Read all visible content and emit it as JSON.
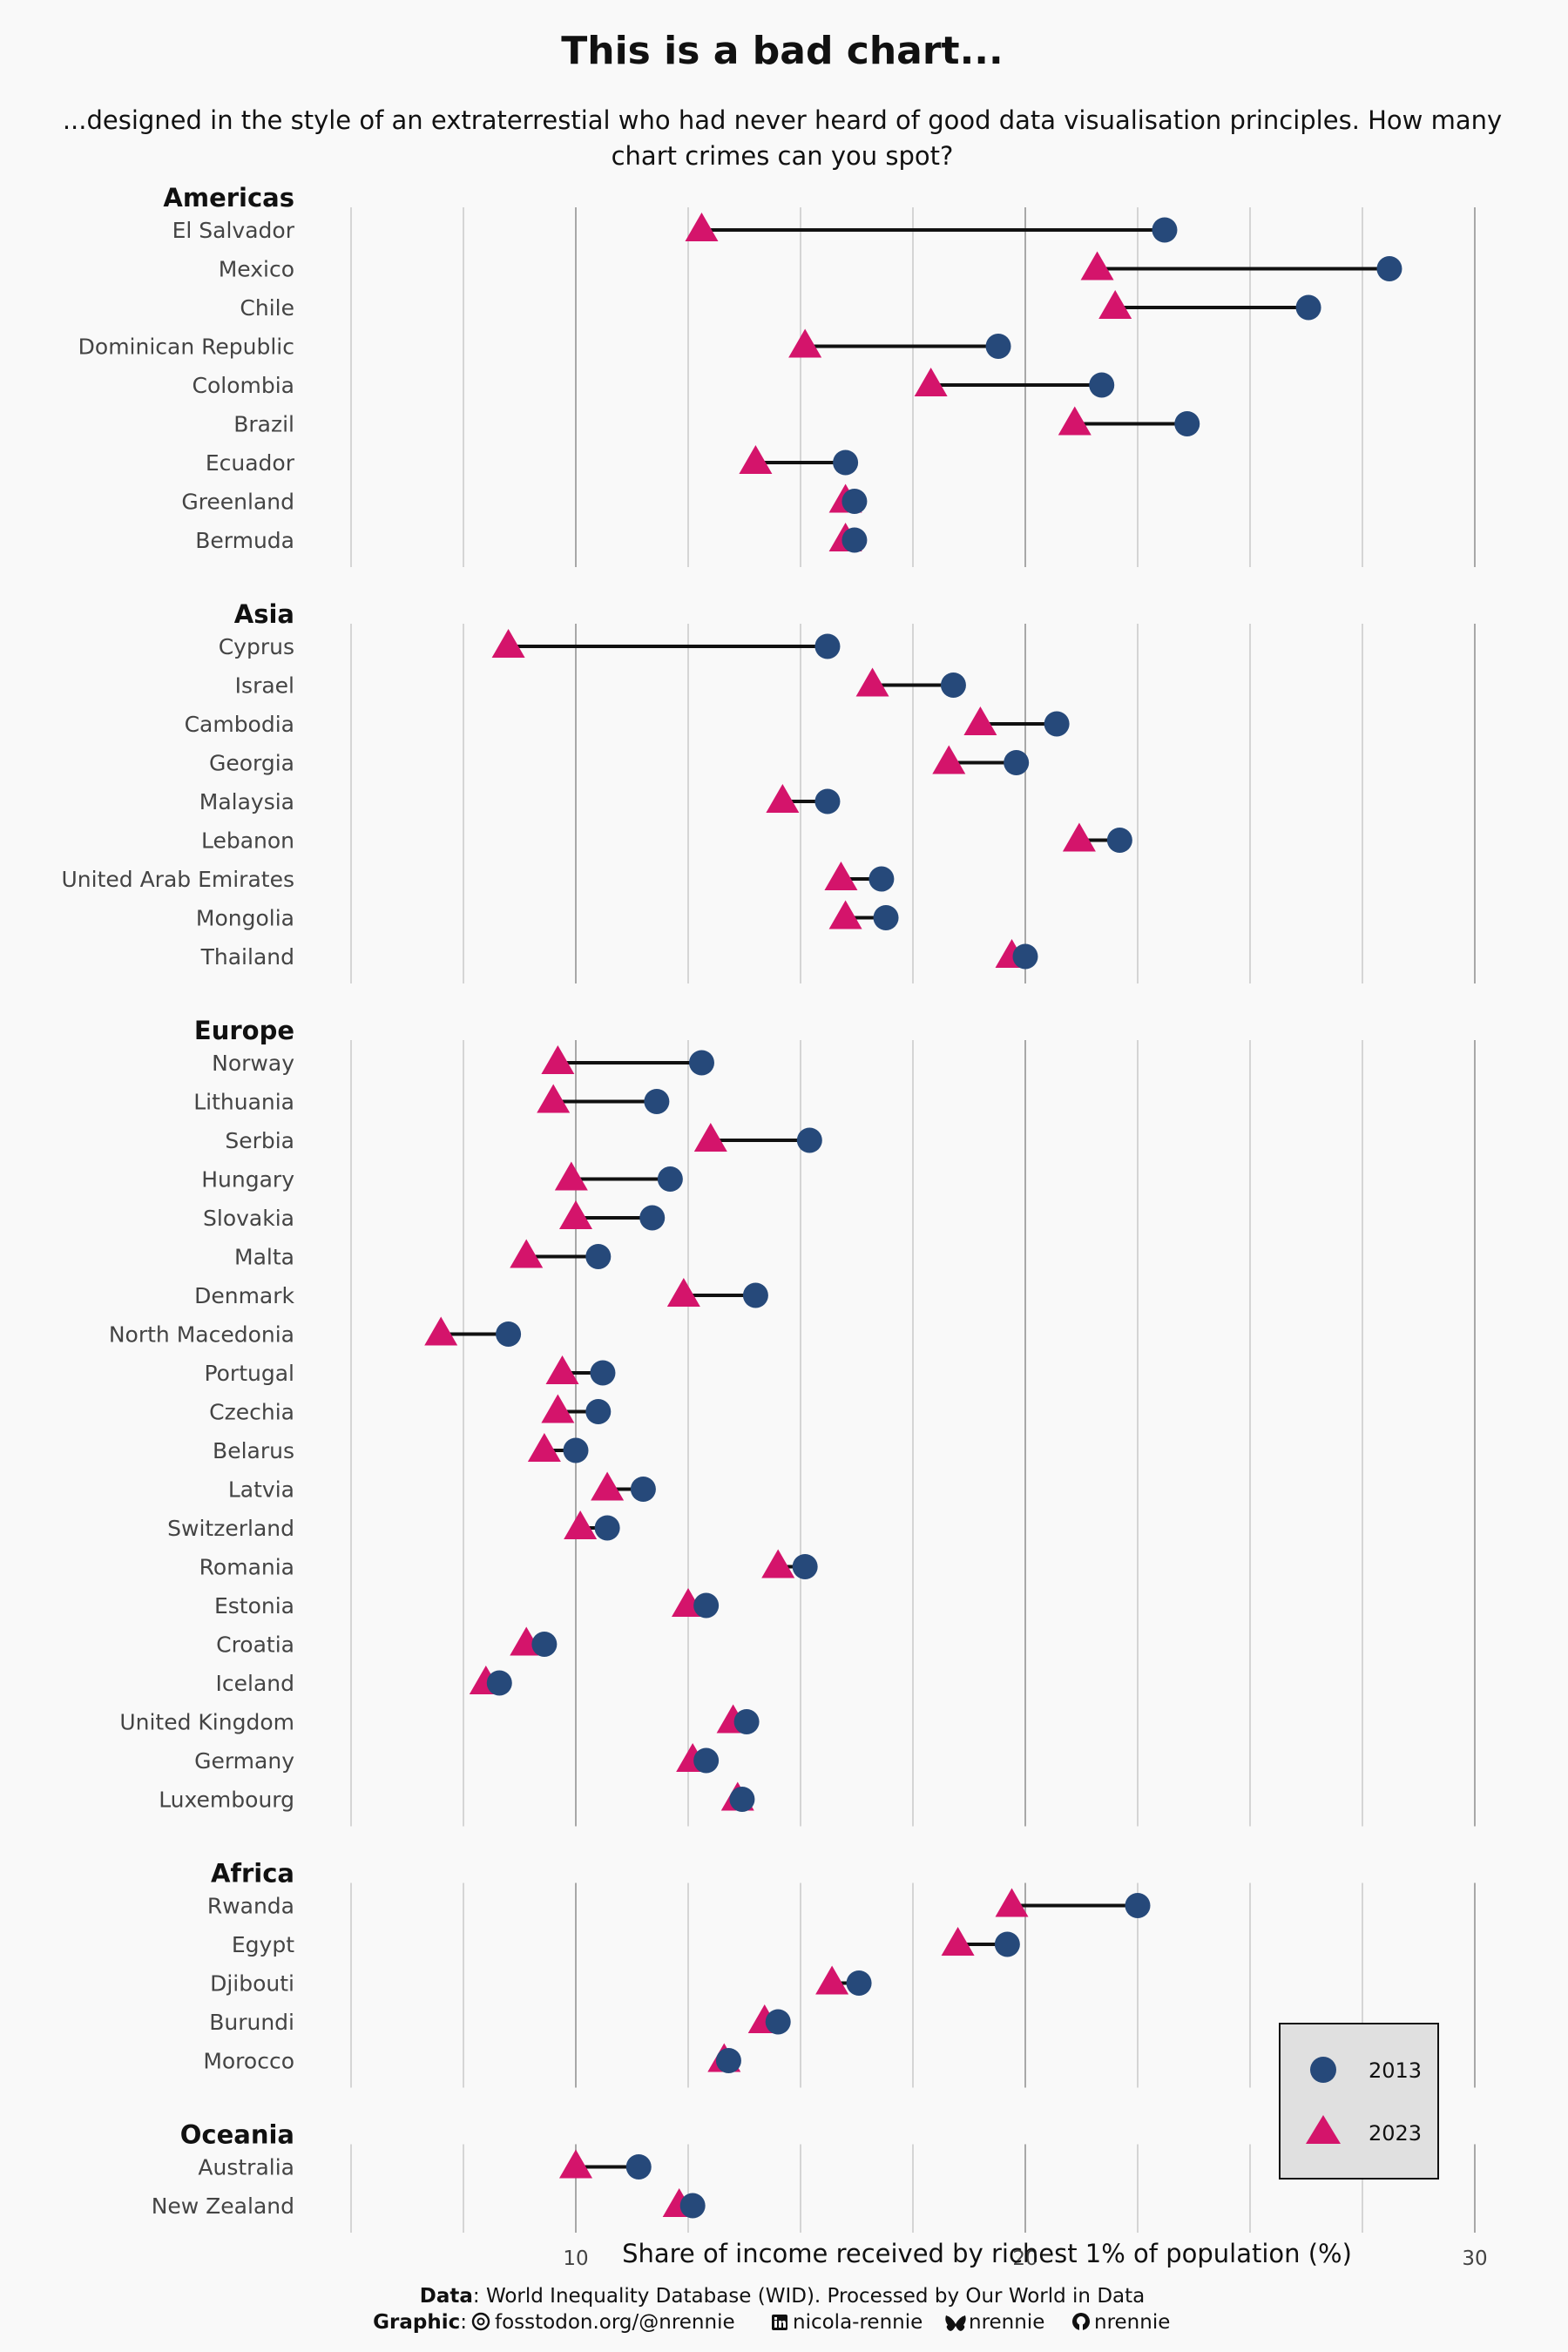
{
  "chart_data": {
    "type": "dumbbell",
    "title": "This is a bad chart...",
    "subtitle_lines": [
      "...designed in the style of an extraterrestial who had never heard of good data visualisation principles. How many",
      "chart crimes can you spot?"
    ],
    "xlabel": "Share of income received by richest 1% of population (%)",
    "x_ticks": [
      10,
      20,
      30
    ],
    "xlim": [
      5,
      30
    ],
    "grid": true,
    "legend": {
      "position": "bottom-right",
      "entries": [
        {
          "label": "2013",
          "shape": "circle",
          "color": "#26497a"
        },
        {
          "label": "2023",
          "shape": "triangle",
          "color": "#d4146b"
        }
      ]
    },
    "colors": {
      "y2013": "#26497a",
      "y2023": "#d4146b",
      "segment": "#111111"
    },
    "groups": [
      {
        "name": "Americas",
        "rows": [
          {
            "country": "El Salvador",
            "y2013": 23.1,
            "y2023": 12.8
          },
          {
            "country": "Mexico",
            "y2013": 28.1,
            "y2023": 21.6
          },
          {
            "country": "Chile",
            "y2013": 26.3,
            "y2023": 22.0
          },
          {
            "country": "Dominican Republic",
            "y2013": 19.4,
            "y2023": 15.1
          },
          {
            "country": "Colombia",
            "y2013": 21.7,
            "y2023": 17.9
          },
          {
            "country": "Brazil",
            "y2013": 23.6,
            "y2023": 21.1
          },
          {
            "country": "Ecuador",
            "y2013": 16.0,
            "y2023": 14.0
          },
          {
            "country": "Greenland",
            "y2013": 16.2,
            "y2023": 16.0
          },
          {
            "country": "Bermuda",
            "y2013": 16.2,
            "y2023": 16.0
          }
        ]
      },
      {
        "name": "Asia",
        "rows": [
          {
            "country": "Cyprus",
            "y2013": 15.6,
            "y2023": 8.5
          },
          {
            "country": "Israel",
            "y2013": 18.4,
            "y2023": 16.6
          },
          {
            "country": "Cambodia",
            "y2013": 20.7,
            "y2023": 19.0
          },
          {
            "country": "Georgia",
            "y2013": 19.8,
            "y2023": 18.3
          },
          {
            "country": "Malaysia",
            "y2013": 15.6,
            "y2023": 14.6
          },
          {
            "country": "Lebanon",
            "y2013": 22.1,
            "y2023": 21.2
          },
          {
            "country": "United Arab Emirates",
            "y2013": 16.8,
            "y2023": 15.9
          },
          {
            "country": "Mongolia",
            "y2013": 16.9,
            "y2023": 16.0
          },
          {
            "country": "Thailand",
            "y2013": 20.0,
            "y2023": 19.7
          }
        ]
      },
      {
        "name": "Europe",
        "rows": [
          {
            "country": "Norway",
            "y2013": 12.8,
            "y2023": 9.6
          },
          {
            "country": "Lithuania",
            "y2013": 11.8,
            "y2023": 9.5
          },
          {
            "country": "Serbia",
            "y2013": 15.2,
            "y2023": 13.0
          },
          {
            "country": "Hungary",
            "y2013": 12.1,
            "y2023": 9.9
          },
          {
            "country": "Slovakia",
            "y2013": 11.7,
            "y2023": 10.0
          },
          {
            "country": "Malta",
            "y2013": 10.5,
            "y2023": 8.9
          },
          {
            "country": "Denmark",
            "y2013": 14.0,
            "y2023": 12.4
          },
          {
            "country": "North Macedonia",
            "y2013": 8.5,
            "y2023": 7.0
          },
          {
            "country": "Portugal",
            "y2013": 10.6,
            "y2023": 9.7
          },
          {
            "country": "Czechia",
            "y2013": 10.5,
            "y2023": 9.6
          },
          {
            "country": "Belarus",
            "y2013": 10.0,
            "y2023": 9.3
          },
          {
            "country": "Latvia",
            "y2013": 11.5,
            "y2023": 10.7
          },
          {
            "country": "Switzerland",
            "y2013": 10.7,
            "y2023": 10.1
          },
          {
            "country": "Romania",
            "y2013": 15.1,
            "y2023": 14.5
          },
          {
            "country": "Estonia",
            "y2013": 12.9,
            "y2023": 12.5
          },
          {
            "country": "Croatia",
            "y2013": 9.3,
            "y2023": 8.9
          },
          {
            "country": "Iceland",
            "y2013": 8.3,
            "y2023": 8.0
          },
          {
            "country": "United Kingdom",
            "y2013": 13.8,
            "y2023": 13.5
          },
          {
            "country": "Germany",
            "y2013": 12.9,
            "y2023": 12.6
          },
          {
            "country": "Luxembourg",
            "y2013": 13.7,
            "y2023": 13.6
          }
        ]
      },
      {
        "name": "Africa",
        "rows": [
          {
            "country": "Rwanda",
            "y2013": 22.5,
            "y2023": 19.7
          },
          {
            "country": "Egypt",
            "y2013": 19.6,
            "y2023": 18.5
          },
          {
            "country": "Djibouti",
            "y2013": 16.3,
            "y2023": 15.7
          },
          {
            "country": "Burundi",
            "y2013": 14.5,
            "y2023": 14.2
          },
          {
            "country": "Morocco",
            "y2013": 13.4,
            "y2023": 13.3
          }
        ]
      },
      {
        "name": "Oceania",
        "rows": [
          {
            "country": "Australia",
            "y2013": 11.4,
            "y2023": 10.0
          },
          {
            "country": "New Zealand",
            "y2013": 12.6,
            "y2023": 12.3
          }
        ]
      }
    ]
  },
  "caption": {
    "data_label": "Data",
    "data_text": ": World Inequality Database (WID). Processed by Our World in Data",
    "graphic_label": "Graphic",
    "graphic_colon": ":",
    "mastodon": "fosstodon.org/@nrennie",
    "linkedin": "nicola-rennie",
    "bluesky": "nrennie",
    "github": "nrennie"
  }
}
